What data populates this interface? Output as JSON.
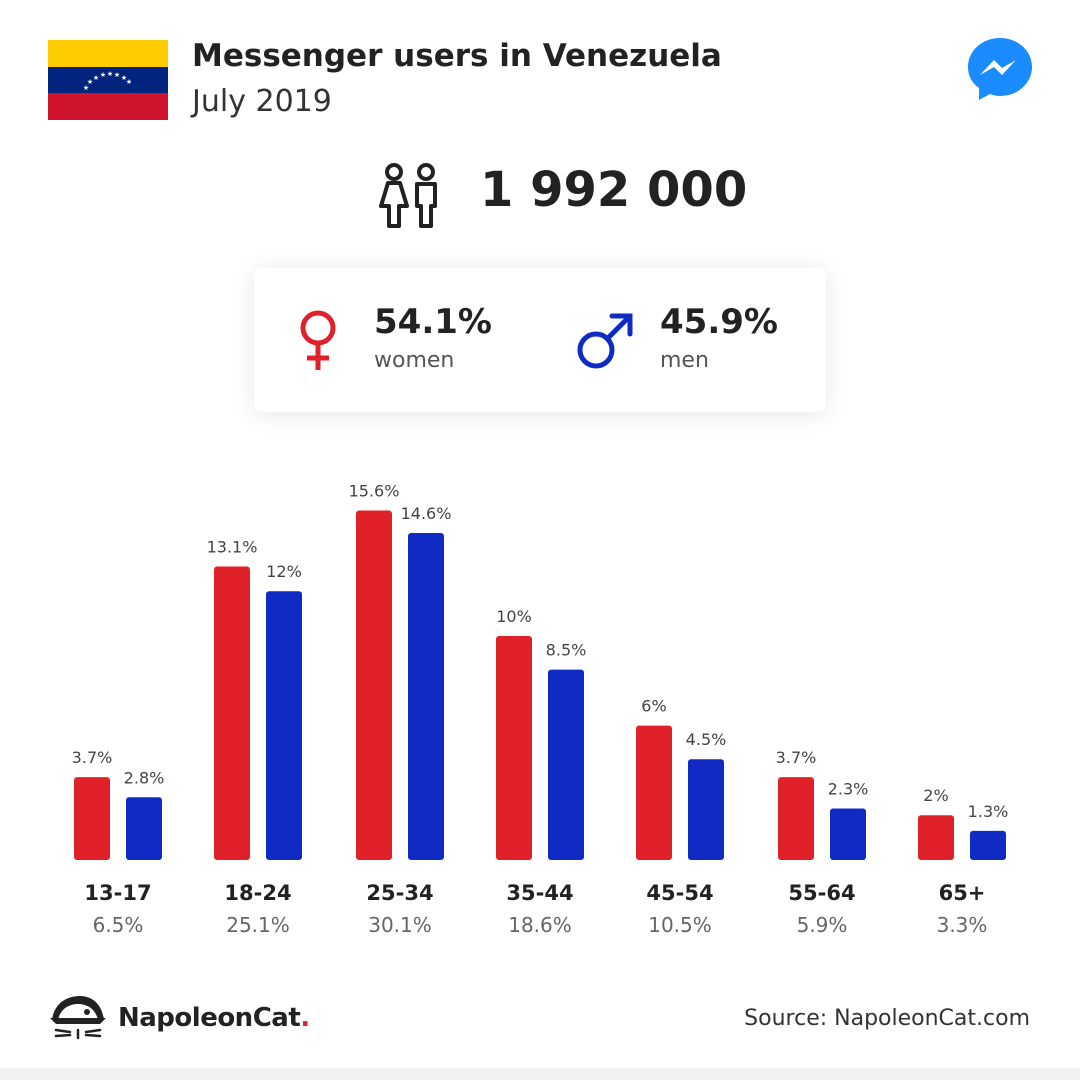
{
  "header": {
    "title": "Messenger users in Venezuela",
    "subtitle": "July 2019"
  },
  "flag": {
    "colors": [
      "#FFCC00",
      "#00247D",
      "#CF142B"
    ],
    "icon": "venezuela-flag-icon"
  },
  "total": {
    "value": "1 992 000",
    "icon": "people-icon"
  },
  "gender": {
    "women": {
      "pct": "54.1%",
      "label": "women",
      "color": "#e0212a"
    },
    "men": {
      "pct": "45.9%",
      "label": "men",
      "color": "#0f2bc4"
    }
  },
  "chart_data": {
    "type": "bar",
    "categories": [
      "13-17",
      "18-24",
      "25-34",
      "35-44",
      "45-54",
      "55-64",
      "65+"
    ],
    "totals": [
      "6.5%",
      "25.1%",
      "30.1%",
      "18.6%",
      "10.5%",
      "5.9%",
      "3.3%"
    ],
    "series": [
      {
        "values": [
          3.7,
          13.1,
          15.6,
          10,
          6,
          3.7,
          2
        ],
        "labels": [
          "3.7%",
          "13.1%",
          "15.6%",
          "10%",
          "6%",
          "3.7%",
          "2%"
        ],
        "color": "#e0212a"
      },
      {
        "values": [
          2.8,
          12,
          14.6,
          8.5,
          4.5,
          2.3,
          1.3
        ],
        "labels": [
          "2.8%",
          "12%",
          "14.6%",
          "8.5%",
          "4.5%",
          "2.3%",
          "1.3%"
        ],
        "color": "#0f2bc4"
      }
    ]
  },
  "footer": {
    "brand": "NapoleonCat",
    "brand_dot": ".",
    "source": "Source: NapoleonCat.com"
  }
}
